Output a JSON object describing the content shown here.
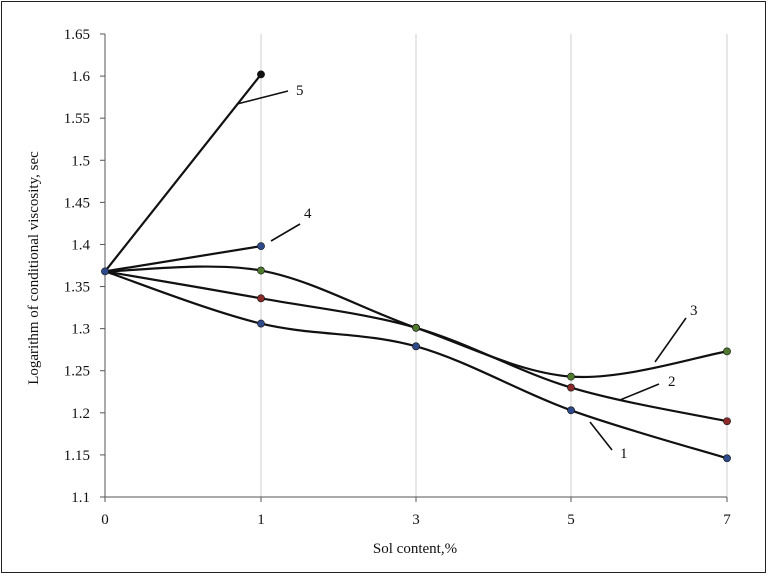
{
  "chart_data": {
    "type": "line",
    "xlabel": "Sol content,%",
    "ylabel": "Logarithm of conditional viscosity, sec",
    "x_ticks": [
      0,
      1,
      3,
      5,
      7
    ],
    "y_ticks": [
      "1.1",
      "1.15",
      "1.2",
      "1.25",
      "1.3",
      "1.35",
      "1.4",
      "1.45",
      "1.5",
      "1.55",
      "1.6",
      "1.65"
    ],
    "ylim": [
      1.1,
      1.65
    ],
    "grid": "vertical",
    "series": [
      {
        "name": "1",
        "x": [
          0,
          1,
          3,
          5,
          7
        ],
        "y": [
          1.368,
          1.306,
          1.279,
          1.203,
          1.146
        ],
        "marker_color": "#2f4a8a"
      },
      {
        "name": "2",
        "x": [
          0,
          1,
          3,
          5,
          7
        ],
        "y": [
          1.368,
          1.336,
          1.301,
          1.23,
          1.19
        ],
        "marker_color": "#8a2a2a"
      },
      {
        "name": "3",
        "x": [
          0,
          1,
          3,
          5,
          7
        ],
        "y": [
          1.368,
          1.369,
          1.301,
          1.243,
          1.273
        ],
        "marker_color": "#4f7a2e"
      },
      {
        "name": "4",
        "x": [
          0,
          1
        ],
        "y": [
          1.368,
          1.398
        ],
        "marker_color": "#2f4a8a"
      },
      {
        "name": "5",
        "x": [
          0,
          1
        ],
        "y": [
          1.368,
          1.602
        ],
        "marker_color": "#111111"
      }
    ]
  }
}
